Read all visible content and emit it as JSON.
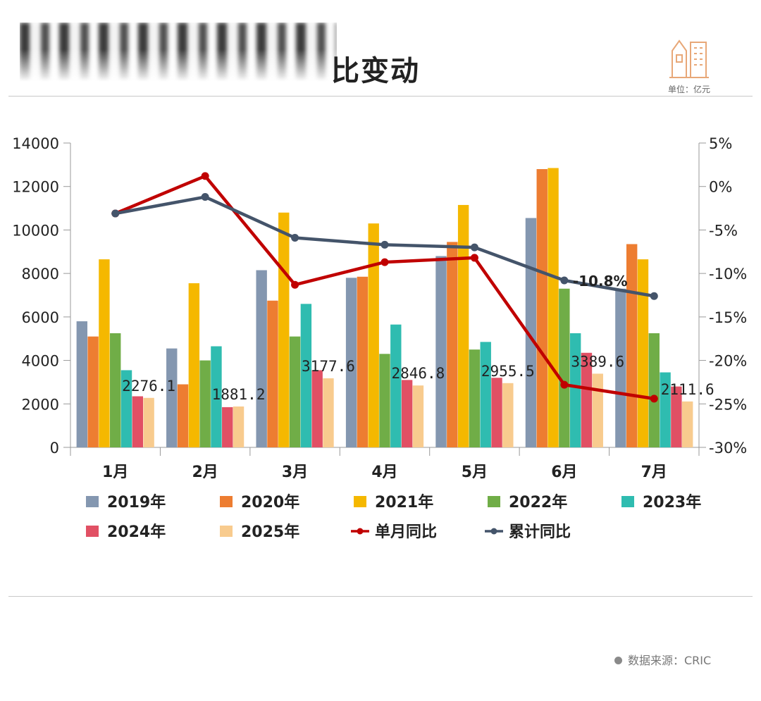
{
  "header": {
    "title": "比变动",
    "unit": "单位：亿元"
  },
  "footer": {
    "source": "数据来源：CRIC"
  },
  "chart_data": {
    "type": "bar",
    "categories": [
      "1月",
      "2月",
      "3月",
      "4月",
      "5月",
      "6月",
      "7月"
    ],
    "ylim": [
      0,
      14000
    ],
    "y_ticks": [
      "0",
      "2000",
      "4000",
      "6000",
      "8000",
      "10000",
      "12000",
      "14000"
    ],
    "y2lim": [
      -30,
      5
    ],
    "y2_ticks": [
      "-30%",
      "-25%",
      "-20%",
      "-15%",
      "-10%",
      "-5%",
      "0%",
      "5%"
    ],
    "series": [
      {
        "name": "2019年",
        "color": "#8497b0",
        "values": [
          5800,
          4550,
          8150,
          7800,
          8800,
          10550,
          7300
        ]
      },
      {
        "name": "2020年",
        "color": "#ed7d31",
        "values": [
          5100,
          2900,
          6750,
          7850,
          9450,
          12800,
          9350
        ]
      },
      {
        "name": "2021年",
        "color": "#f5b800",
        "values": [
          8650,
          7550,
          10800,
          10300,
          11150,
          12850,
          8650
        ]
      },
      {
        "name": "2022年",
        "color": "#70ad47",
        "values": [
          5250,
          4000,
          5100,
          4300,
          4500,
          7300,
          5250
        ]
      },
      {
        "name": "2023年",
        "color": "#2fbcb0",
        "values": [
          3550,
          4650,
          6600,
          5650,
          4850,
          5250,
          3450
        ]
      },
      {
        "name": "2024年",
        "color": "#e15064",
        "values": [
          2350,
          1850,
          3550,
          3100,
          3200,
          4350,
          2800
        ]
      },
      {
        "name": "2025年",
        "color": "#f8cb8e",
        "values": [
          2276.1,
          1881.2,
          3177.6,
          2846.8,
          2955.5,
          3389.6,
          2111.6
        ]
      }
    ],
    "data_labels": [
      "2276.1",
      "1881.2",
      "3177.6",
      "2846.8",
      "2955.5",
      "3389.6",
      "2111.6"
    ],
    "lines": [
      {
        "name": "单月同比",
        "color": "#c00000",
        "axis": "right",
        "values": [
          -3.1,
          1.2,
          -11.3,
          -8.7,
          -8.2,
          -22.8,
          -24.4
        ]
      },
      {
        "name": "累计同比",
        "color": "#44546a",
        "axis": "right",
        "values": [
          -3.1,
          -1.2,
          -5.9,
          -6.7,
          -7.0,
          -10.8,
          -12.6
        ]
      }
    ],
    "annotation": "-10.8%",
    "legend_position": "bottom"
  }
}
